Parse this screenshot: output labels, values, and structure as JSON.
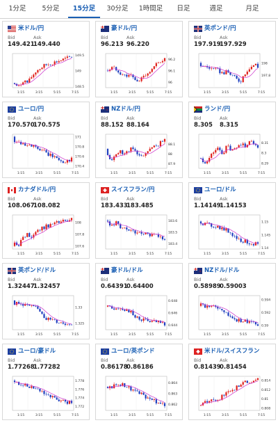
{
  "tabs": [
    {
      "label": "1分足",
      "active": false
    },
    {
      "label": "5分足",
      "active": false
    },
    {
      "label": "15分足",
      "active": true
    },
    {
      "label": "30分足",
      "active": false
    },
    {
      "label": "1時間足",
      "active": false
    },
    {
      "label": "日足",
      "active": false
    },
    {
      "label": "週足",
      "active": false
    },
    {
      "label": "月足",
      "active": false
    }
  ],
  "labels": {
    "bid": "Bid",
    "ask": "Ask"
  },
  "colors": {
    "up": "#e0201b",
    "down": "#1f3fbf",
    "ma": "#cc33cc",
    "accent": "#1a5fb4"
  },
  "cards": [
    {
      "pair": "米ドル/円",
      "flag": "us",
      "bid": "149.421",
      "ask": "149.440",
      "chart_data": {
        "type": "candlestick",
        "x_ticks": [
          "1:15",
          "3:15",
          "5:15",
          "7:15"
        ],
        "y_ticks": [
          "149.5",
          "149",
          "148.5"
        ],
        "ylim": [
          148.45,
          149.55
        ],
        "open": 148.6,
        "close": 149.43,
        "trend": [
          0,
          -0.1,
          0.15,
          0.05,
          0.3,
          0.5,
          0.6,
          0.7,
          0.75,
          0.8,
          0.85,
          0.9,
          0.95,
          1.0
        ]
      }
    },
    {
      "pair": "豪ドル/円",
      "flag": "au",
      "bid": "96.213",
      "ask": "96.220",
      "chart_data": {
        "type": "candlestick",
        "x_ticks": [
          "1:15",
          "3:15",
          "5:15",
          "7:15"
        ],
        "y_ticks": [
          "96.2",
          "96.1",
          "96"
        ],
        "ylim": [
          95.95,
          96.25
        ],
        "open": 96.1,
        "close": 96.21,
        "trend": [
          0.5,
          0.6,
          0.55,
          0.4,
          0.3,
          0.35,
          0.2,
          0.05,
          0.3,
          0.4,
          0.5,
          0.7,
          0.85,
          0.95
        ]
      }
    },
    {
      "pair": "英ポンド/円",
      "flag": "uk",
      "bid": "197.919",
      "ask": "197.929",
      "chart_data": {
        "type": "candlestick",
        "x_ticks": [
          "1:15",
          "3:15",
          "5:15",
          "7:15"
        ],
        "y_ticks": [
          "198",
          "197.8"
        ],
        "ylim": [
          197.6,
          198.15
        ],
        "open": 198.0,
        "close": 197.92,
        "trend": [
          0.7,
          0.65,
          0.6,
          0.55,
          0.5,
          0.4,
          0.45,
          0.35,
          0.2,
          0.1,
          0.4,
          0.6,
          0.7,
          0.75
        ]
      }
    },
    {
      "pair": "ユーロ/円",
      "flag": "eu",
      "bid": "170.570",
      "ask": "170.575",
      "chart_data": {
        "type": "candlestick",
        "x_ticks": [
          "1:15",
          "3:15",
          "5:15",
          "7:15"
        ],
        "y_ticks": [
          "171",
          "170.8",
          "170.6",
          "170.4"
        ],
        "ylim": [
          170.35,
          171.05
        ],
        "open": 171.0,
        "close": 170.57,
        "trend": [
          0.9,
          0.85,
          0.8,
          0.75,
          0.7,
          0.6,
          0.55,
          0.45,
          0.35,
          0.3,
          0.2,
          0.1,
          0.15,
          0.2
        ]
      }
    },
    {
      "pair": "NZドル/円",
      "flag": "nz",
      "bid": "88.152",
      "ask": "88.164",
      "chart_data": {
        "type": "candlestick",
        "x_ticks": [
          "1:15",
          "3:15",
          "5:15",
          "7:15"
        ],
        "y_ticks": [
          "88.1",
          "88",
          "87.9"
        ],
        "ylim": [
          87.85,
          88.2
        ],
        "open": 88.05,
        "close": 88.15,
        "trend": [
          0.3,
          0.2,
          0.4,
          0.5,
          0.4,
          0.6,
          0.55,
          0.3,
          0.35,
          0.5,
          0.6,
          0.7,
          0.8,
          0.85
        ]
      }
    },
    {
      "pair": "ランド/円",
      "flag": "za",
      "bid": "8.305",
      "ask": "8.315",
      "chart_data": {
        "type": "candlestick",
        "x_ticks": [
          "1:15",
          "3:15",
          "5:15",
          "7:15"
        ],
        "y_ticks": [
          "8.31",
          "8.3",
          "8.29"
        ],
        "ylim": [
          8.285,
          8.318
        ],
        "open": 8.295,
        "close": 8.305,
        "trend": [
          0.2,
          0.1,
          0.25,
          0.5,
          0.6,
          0.4,
          0.7,
          0.5,
          0.6,
          0.8,
          0.7,
          0.85,
          0.8,
          0.75
        ]
      }
    },
    {
      "pair": "カナダドル/円",
      "flag": "ca",
      "bid": "108.067",
      "ask": "108.082",
      "chart_data": {
        "type": "candlestick",
        "x_ticks": [
          "1:15",
          "3:15",
          "5:15",
          "7:15"
        ],
        "y_ticks": [
          "108",
          "107.8",
          "107.6"
        ],
        "ylim": [
          107.55,
          108.12
        ],
        "open": 107.6,
        "close": 108.07,
        "trend": [
          0.1,
          0.05,
          0.3,
          0.4,
          0.35,
          0.55,
          0.6,
          0.7,
          0.75,
          0.8,
          0.85,
          0.9,
          0.88,
          0.92
        ]
      }
    },
    {
      "pair": "スイスフラン/円",
      "flag": "ch",
      "bid": "183.433",
      "ask": "183.485",
      "chart_data": {
        "type": "candlestick",
        "x_ticks": [
          "1:15",
          "3:15",
          "5:15",
          "7:15"
        ],
        "y_ticks": [
          "183.6",
          "183.5",
          "183.4"
        ],
        "ylim": [
          183.35,
          183.65
        ],
        "open": 183.6,
        "close": 183.43,
        "trend": [
          0.9,
          0.7,
          0.85,
          0.6,
          0.7,
          0.5,
          0.55,
          0.4,
          0.5,
          0.45,
          0.4,
          0.35,
          0.3,
          0.25
        ]
      }
    },
    {
      "pair": "ユーロ/ドル",
      "flag": "eu",
      "bid": "1.14149",
      "ask": "1.14153",
      "chart_data": {
        "type": "candlestick",
        "x_ticks": [
          "1:15",
          "3:15",
          "5:15",
          "7:15"
        ],
        "y_ticks": [
          "1.15",
          "1.145",
          "1.14"
        ],
        "ylim": [
          1.1395,
          1.1525
        ],
        "open": 1.15,
        "close": 1.1415,
        "trend": [
          0.85,
          0.8,
          0.75,
          0.72,
          0.7,
          0.6,
          0.55,
          0.45,
          0.3,
          0.2,
          0.15,
          0.1,
          0.08,
          0.1
        ]
      }
    },
    {
      "pair": "英ポンド/ドル",
      "flag": "uk",
      "bid": "1.32447",
      "ask": "1.32457",
      "chart_data": {
        "type": "candlestick",
        "x_ticks": [
          "1:15",
          "3:15",
          "5:15",
          "7:15"
        ],
        "y_ticks": [
          "1.33",
          "1.325"
        ],
        "ylim": [
          1.323,
          1.3335
        ],
        "open": 1.332,
        "close": 1.3245,
        "trend": [
          0.85,
          0.8,
          0.82,
          0.75,
          0.7,
          0.65,
          0.55,
          0.3,
          0.25,
          0.2,
          0.15,
          0.12,
          0.1,
          0.1
        ]
      }
    },
    {
      "pair": "豪ドル/ドル",
      "flag": "au",
      "bid": "0.64391",
      "ask": "0.64400",
      "chart_data": {
        "type": "candlestick",
        "x_ticks": [
          "1:15",
          "3:15",
          "5:15",
          "7:15"
        ],
        "y_ticks": [
          "0.648",
          "0.646",
          "0.644"
        ],
        "ylim": [
          0.6432,
          0.6488
        ],
        "open": 0.647,
        "close": 0.6439,
        "trend": [
          0.7,
          0.65,
          0.7,
          0.68,
          0.6,
          0.55,
          0.35,
          0.3,
          0.25,
          0.2,
          0.18,
          0.15,
          0.12,
          0.1
        ]
      }
    },
    {
      "pair": "NZドル/ドル",
      "flag": "nz",
      "bid": "0.58989",
      "ask": "0.59003",
      "chart_data": {
        "type": "candlestick",
        "x_ticks": [
          "1:15",
          "3:15",
          "5:15",
          "7:15"
        ],
        "y_ticks": [
          "0.594",
          "0.592",
          "0.59"
        ],
        "ylim": [
          0.5893,
          0.5946
        ],
        "open": 0.593,
        "close": 0.5899,
        "trend": [
          0.8,
          0.7,
          0.75,
          0.7,
          0.65,
          0.6,
          0.4,
          0.35,
          0.25,
          0.2,
          0.18,
          0.15,
          0.12,
          0.1
        ]
      }
    },
    {
      "pair": "ユーロ/豪ドル",
      "flag": "eu",
      "bid": "1.77268",
      "ask": "1.77282",
      "chart_data": {
        "type": "candlestick",
        "x_ticks": [
          "1:15",
          "3:15",
          "5:15",
          "7:15"
        ],
        "y_ticks": [
          "1.778",
          "1.776",
          "1.774",
          "1.772"
        ],
        "ylim": [
          1.771,
          1.779
        ],
        "open": 1.778,
        "close": 1.7727,
        "trend": [
          0.9,
          0.85,
          0.8,
          0.75,
          0.72,
          0.65,
          0.6,
          0.5,
          0.4,
          0.3,
          0.25,
          0.2,
          0.18,
          0.2
        ]
      }
    },
    {
      "pair": "ユーロ/英ポンド",
      "flag": "eu",
      "bid": "0.86178",
      "ask": "0.86186",
      "chart_data": {
        "type": "candlestick",
        "x_ticks": [
          "1:15",
          "3:15",
          "5:15",
          "7:15"
        ],
        "y_ticks": [
          "0.864",
          "0.863",
          "0.862"
        ],
        "ylim": [
          0.8614,
          0.8646
        ],
        "open": 0.8636,
        "close": 0.8618,
        "trend": [
          0.7,
          0.75,
          0.8,
          0.85,
          0.8,
          0.7,
          0.6,
          0.5,
          0.45,
          0.35,
          0.25,
          0.2,
          0.15,
          0.2
        ]
      }
    },
    {
      "pair": "米ドル/スイスフラン",
      "flag": "ch",
      "bid": "0.81439",
      "ask": "0.81454",
      "chart_data": {
        "type": "candlestick",
        "x_ticks": [
          "1:15",
          "3:15",
          "5:15",
          "7:15"
        ],
        "y_ticks": [
          "0.814",
          "0.812",
          "0.81",
          "0.808"
        ],
        "ylim": [
          0.8075,
          0.8148
        ],
        "open": 0.8085,
        "close": 0.8144,
        "trend": [
          0.1,
          0.15,
          0.2,
          0.25,
          0.3,
          0.4,
          0.5,
          0.6,
          0.7,
          0.85,
          0.9,
          0.92,
          0.95,
          0.95
        ]
      }
    }
  ]
}
